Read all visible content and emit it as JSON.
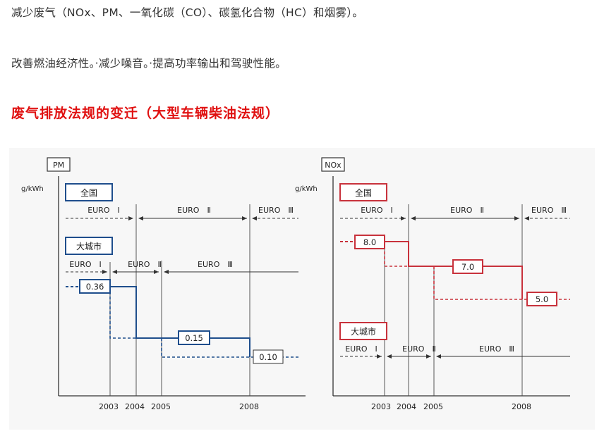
{
  "article": {
    "line1": "减少废气（NOx、PM、一氧化碳（CO）、碳氢化合物（HC）和烟雾）。",
    "line2": "改善燃油经济性。·减少噪音。·提高功率输出和驾驶性能。",
    "heading": "废气排放法规的变迁（大型车辆柴油法规）"
  },
  "colors": {
    "pm_line": "#1f4e8c",
    "nox_line": "#c8323c",
    "heading_text": "#e01010",
    "axis": "#333333"
  },
  "pm_chart": {
    "title_box": "PM",
    "unit_label": "g/kWh",
    "nation_label": "全国",
    "city_label": "大城市",
    "nation_phases": [
      "EURO　Ⅰ",
      "EURO　Ⅱ",
      "EURO　Ⅲ"
    ],
    "city_phases": [
      "EURO　Ⅰ",
      "EURO　Ⅱ",
      "EURO　Ⅲ"
    ],
    "value_labels": [
      "0.36",
      "0.15",
      "0.10"
    ],
    "years": [
      "2003",
      "2004",
      "2005",
      "2008"
    ]
  },
  "nox_chart": {
    "title_box": "NOx",
    "unit_label": "g/kWh",
    "nation_label": "全国",
    "city_label": "大城市",
    "nation_phases": [
      "EURO　Ⅰ",
      "EURO　Ⅱ",
      "EURO　Ⅲ"
    ],
    "city_phases": [
      "EURO　Ⅰ",
      "EURO　Ⅱ",
      "EURO　Ⅲ"
    ],
    "value_labels": [
      "8.0",
      "7.0",
      "5.0"
    ],
    "years": [
      "2003",
      "2004",
      "2005",
      "2008"
    ]
  }
}
